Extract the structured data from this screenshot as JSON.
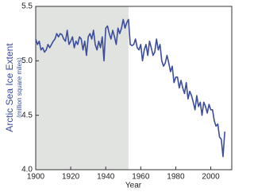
{
  "chart_data": {
    "type": "line",
    "title": "Arctic Sea Ice Extent",
    "subtitle": "(million square miles)",
    "x_label": "Year",
    "x": [
      1900,
      1901,
      1902,
      1903,
      1904,
      1905,
      1906,
      1907,
      1908,
      1909,
      1910,
      1911,
      1912,
      1913,
      1914,
      1915,
      1916,
      1917,
      1918,
      1919,
      1920,
      1921,
      1922,
      1923,
      1924,
      1925,
      1926,
      1927,
      1928,
      1929,
      1930,
      1931,
      1932,
      1933,
      1934,
      1935,
      1936,
      1937,
      1938,
      1939,
      1940,
      1941,
      1942,
      1943,
      1944,
      1945,
      1946,
      1947,
      1948,
      1949,
      1950,
      1951,
      1952,
      1953,
      1954,
      1955,
      1956,
      1957,
      1958,
      1959,
      1960,
      1961,
      1962,
      1963,
      1964,
      1965,
      1966,
      1967,
      1968,
      1969,
      1970,
      1971,
      1972,
      1973,
      1974,
      1975,
      1976,
      1977,
      1978,
      1979,
      1980,
      1981,
      1982,
      1983,
      1984,
      1985,
      1986,
      1987,
      1988,
      1989,
      1990,
      1991,
      1992,
      1993,
      1994,
      1995,
      1996,
      1997,
      1998,
      1999,
      2000,
      2001,
      2002,
      2003,
      2004,
      2005,
      2006,
      2007,
      2008
    ],
    "series": [
      {
        "color": "#3b4d9c",
        "values": [
          5.2,
          5.15,
          5.18,
          5.1,
          5.12,
          5.08,
          5.1,
          5.15,
          5.12,
          5.15,
          5.18,
          5.2,
          5.25,
          5.22,
          5.25,
          5.24,
          5.2,
          5.18,
          5.28,
          5.15,
          5.18,
          5.22,
          5.12,
          5.18,
          5.15,
          5.22,
          5.2,
          5.1,
          5.18,
          5.05,
          5.22,
          5.25,
          5.2,
          5.28,
          5.15,
          5.1,
          5.18,
          5.12,
          5.22,
          5.0,
          5.3,
          5.32,
          5.25,
          5.2,
          5.28,
          5.22,
          5.15,
          5.3,
          5.25,
          5.3,
          5.38,
          5.3,
          5.35,
          5.38,
          5.15,
          5.14,
          5.15,
          5.2,
          5.12,
          5.1,
          5.15,
          5.0,
          5.1,
          5.15,
          5.05,
          5.18,
          5.12,
          5.05,
          5.08,
          5.2,
          5.1,
          5.15,
          5.0,
          4.95,
          4.98,
          5.05,
          4.98,
          4.9,
          4.95,
          4.8,
          4.85,
          4.85,
          4.75,
          4.82,
          4.75,
          4.7,
          4.8,
          4.65,
          4.72,
          4.68,
          4.62,
          4.55,
          4.68,
          4.58,
          4.62,
          4.5,
          4.62,
          4.58,
          4.52,
          4.6,
          4.55,
          4.55,
          4.45,
          4.4,
          4.42,
          4.3,
          4.28,
          4.12,
          4.35
        ]
      }
    ],
    "shaded_xrange": [
      1900,
      1953
    ],
    "shade_color": "#e1e3e1",
    "xlim": [
      1900,
      2012
    ],
    "ylim": [
      4.0,
      5.5
    ],
    "xticks": [
      1900,
      1920,
      1940,
      1960,
      1980,
      2000
    ],
    "yticks": [
      {
        "value": 4.0,
        "label": "4.0"
      },
      4.5,
      {
        "value": 5.0,
        "label": "5.0"
      },
      5.5
    ]
  }
}
